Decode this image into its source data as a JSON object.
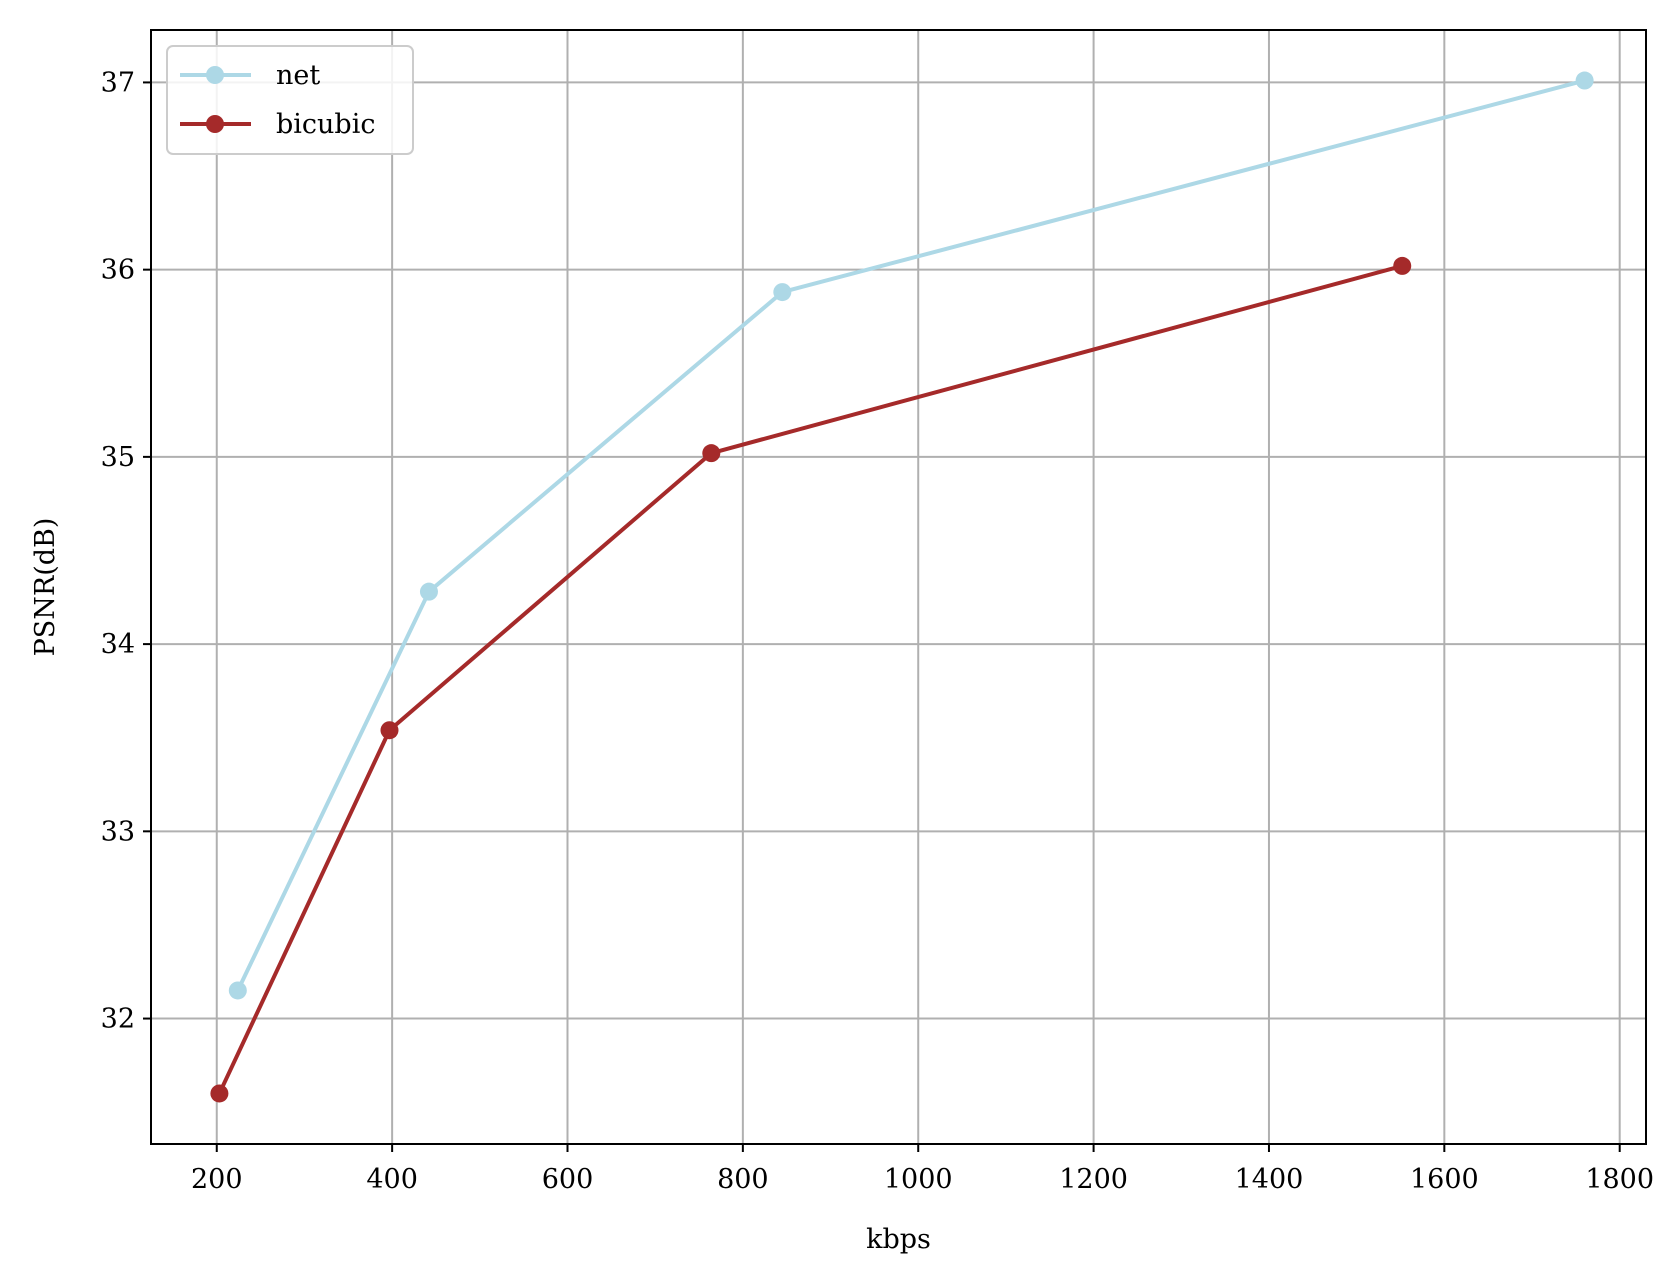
{
  "chart_data": {
    "type": "line",
    "xlabel": "kbps",
    "ylabel": "PSNR(dB)",
    "xlim": [
      125,
      1830
    ],
    "ylim": [
      31.33,
      37.28
    ],
    "x_ticks": [
      200,
      400,
      600,
      800,
      1000,
      1200,
      1400,
      1600,
      1800
    ],
    "y_ticks": [
      32,
      33,
      34,
      35,
      36,
      37
    ],
    "grid": true,
    "legend_position": "upper-left",
    "series": [
      {
        "name": "net",
        "color": "#add8e6",
        "marker": "circle",
        "x": [
          224,
          442,
          845,
          1760
        ],
        "y": [
          32.15,
          34.28,
          35.88,
          37.01
        ]
      },
      {
        "name": "bicubic",
        "color": "#a52a2a",
        "marker": "circle",
        "x": [
          203,
          397,
          764,
          1552
        ],
        "y": [
          31.6,
          33.54,
          35.02,
          36.02
        ]
      }
    ]
  }
}
